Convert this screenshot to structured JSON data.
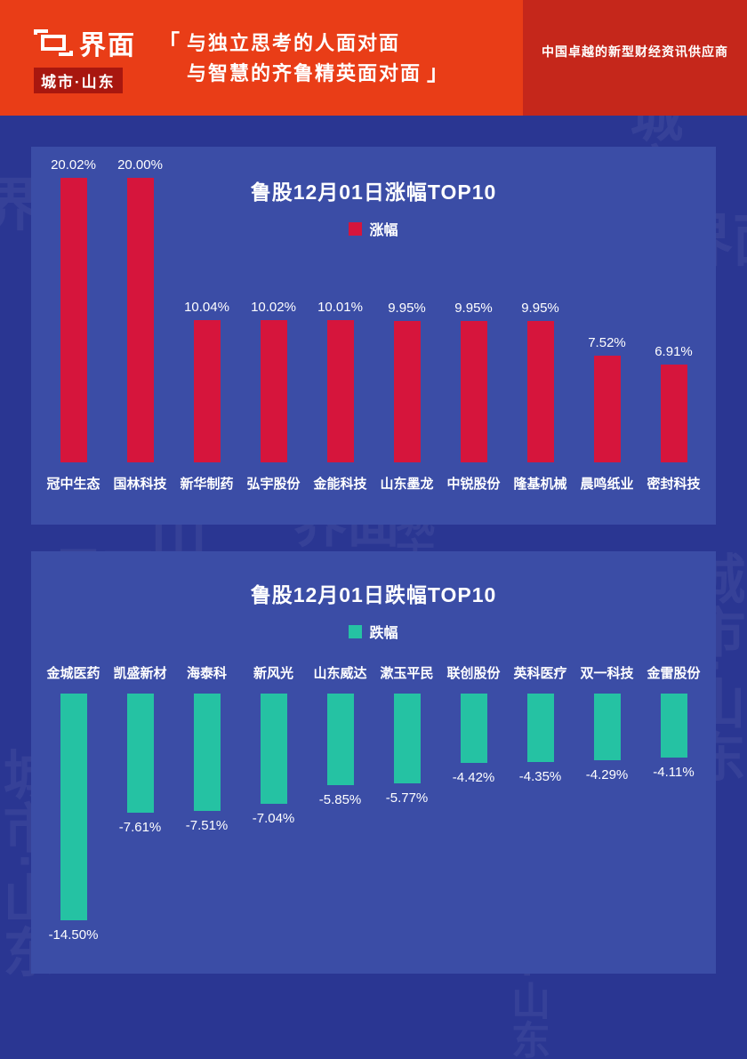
{
  "header": {
    "logo_wordmark": "界面",
    "logo_region": "城市·山东",
    "quote_open": "「",
    "quote_close": "」",
    "quote_line1": "与独立思考的人面对面",
    "quote_line2": "与智慧的齐鲁精英面对面",
    "tagline": "中国卓越的新型财经资讯供应商"
  },
  "watermark": {
    "brand": "界面",
    "region": "城市·山东"
  },
  "colors": {
    "page_bg": "#2a3692",
    "panel_bg": "#3b4da6",
    "header_bg": "#e93d17",
    "tagline_band": "#c5271b",
    "gainer_bar": "#d6153c",
    "loser_bar": "#25c2a3"
  },
  "chart_data": [
    {
      "type": "bar",
      "title": "鲁股12月01日涨幅TOP10",
      "legend": "涨幅",
      "series_color": "#d6153c",
      "direction": "up",
      "categories": [
        "冠中生态",
        "国林科技",
        "新华制药",
        "弘宇股份",
        "金能科技",
        "山东墨龙",
        "中锐股份",
        "隆基机械",
        "晨鸣纸业",
        "密封科技"
      ],
      "values": [
        20.02,
        20.0,
        10.04,
        10.02,
        10.01,
        9.95,
        9.95,
        9.95,
        7.52,
        6.91
      ],
      "labels": [
        "20.02%",
        "20.00%",
        "10.04%",
        "10.02%",
        "10.01%",
        "9.95%",
        "9.95%",
        "9.95%",
        "7.52%",
        "6.91%"
      ],
      "ylim": [
        0,
        20.02
      ],
      "grid": false,
      "legend_position": "top-center"
    },
    {
      "type": "bar",
      "title": "鲁股12月01日跌幅TOP10",
      "legend": "跌幅",
      "series_color": "#25c2a3",
      "direction": "down",
      "categories": [
        "金城医药",
        "凯盛新材",
        "海泰科",
        "新风光",
        "山东威达",
        "漱玉平民",
        "联创股份",
        "英科医疗",
        "双一科技",
        "金雷股份"
      ],
      "values": [
        -14.5,
        -7.61,
        -7.51,
        -7.04,
        -5.85,
        -5.77,
        -4.42,
        -4.35,
        -4.29,
        -4.11
      ],
      "labels": [
        "-14.50%",
        "-7.61%",
        "-7.51%",
        "-7.04%",
        "-5.85%",
        "-5.77%",
        "-4.42%",
        "-4.35%",
        "-4.29%",
        "-4.11%"
      ],
      "ylim": [
        -14.5,
        0
      ],
      "grid": false,
      "legend_position": "top-center"
    }
  ]
}
